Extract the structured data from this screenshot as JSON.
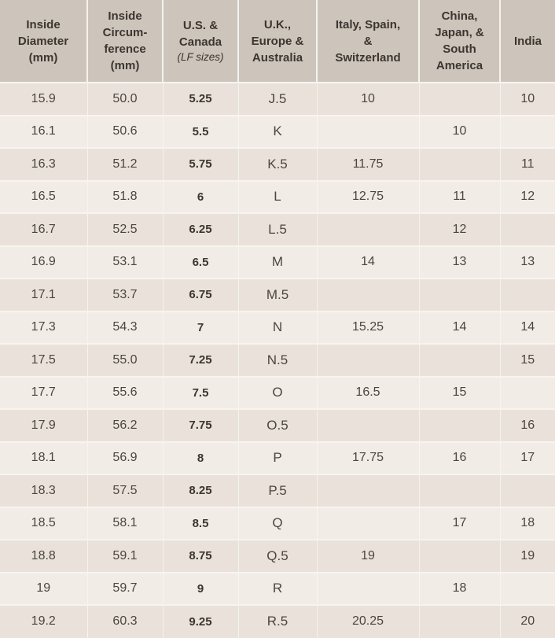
{
  "table": {
    "columns": [
      {
        "label": "Inside\nDiameter\n(mm)"
      },
      {
        "label": "Inside\nCircum-\nference\n(mm)"
      },
      {
        "label": "U.S. &\nCanada",
        "sub": "(LF sizes)"
      },
      {
        "label": "U.K.,\nEurope &\nAustralia"
      },
      {
        "label": "Italy, Spain,\n&\nSwitzerland"
      },
      {
        "label": "China,\nJapan, &\nSouth\nAmerica"
      },
      {
        "label": "India"
      }
    ],
    "rows": [
      [
        "15.9",
        "50.0",
        "5.25",
        "J.5",
        "10",
        "",
        "10"
      ],
      [
        "16.1",
        "50.6",
        "5.5",
        "K",
        "",
        "10",
        ""
      ],
      [
        "16.3",
        "51.2",
        "5.75",
        "K.5",
        "11.75",
        "",
        "11"
      ],
      [
        "16.5",
        "51.8",
        "6",
        "L",
        "12.75",
        "11",
        "12"
      ],
      [
        "16.7",
        "52.5",
        "6.25",
        "L.5",
        "",
        "12",
        ""
      ],
      [
        "16.9",
        "53.1",
        "6.5",
        "M",
        "14",
        "13",
        "13"
      ],
      [
        "17.1",
        "53.7",
        "6.75",
        "M.5",
        "",
        "",
        ""
      ],
      [
        "17.3",
        "54.3",
        "7",
        "N",
        "15.25",
        "14",
        "14"
      ],
      [
        "17.5",
        "55.0",
        "7.25",
        "N.5",
        "",
        "",
        "15"
      ],
      [
        "17.7",
        "55.6",
        "7.5",
        "O",
        "16.5",
        "15",
        ""
      ],
      [
        "17.9",
        "56.2",
        "7.75",
        "O.5",
        "",
        "",
        "16"
      ],
      [
        "18.1",
        "56.9",
        "8",
        "P",
        "17.75",
        "16",
        "17"
      ],
      [
        "18.3",
        "57.5",
        "8.25",
        "P.5",
        "",
        "",
        ""
      ],
      [
        "18.5",
        "58.1",
        "8.5",
        "Q",
        "",
        "17",
        "18"
      ],
      [
        "18.8",
        "59.1",
        "8.75",
        "Q.5",
        "19",
        "",
        "19"
      ],
      [
        "19",
        "59.7",
        "9",
        "R",
        "",
        "18",
        ""
      ],
      [
        "19.2",
        "60.3",
        "9.25",
        "R.5",
        "20.25",
        "",
        "20"
      ]
    ]
  },
  "colors": {
    "header_bg": "#cdc4bb",
    "row_dark": "#eae2da",
    "row_light": "#f2ece7",
    "text": "#46413c",
    "separator": "#f7f4f0"
  }
}
